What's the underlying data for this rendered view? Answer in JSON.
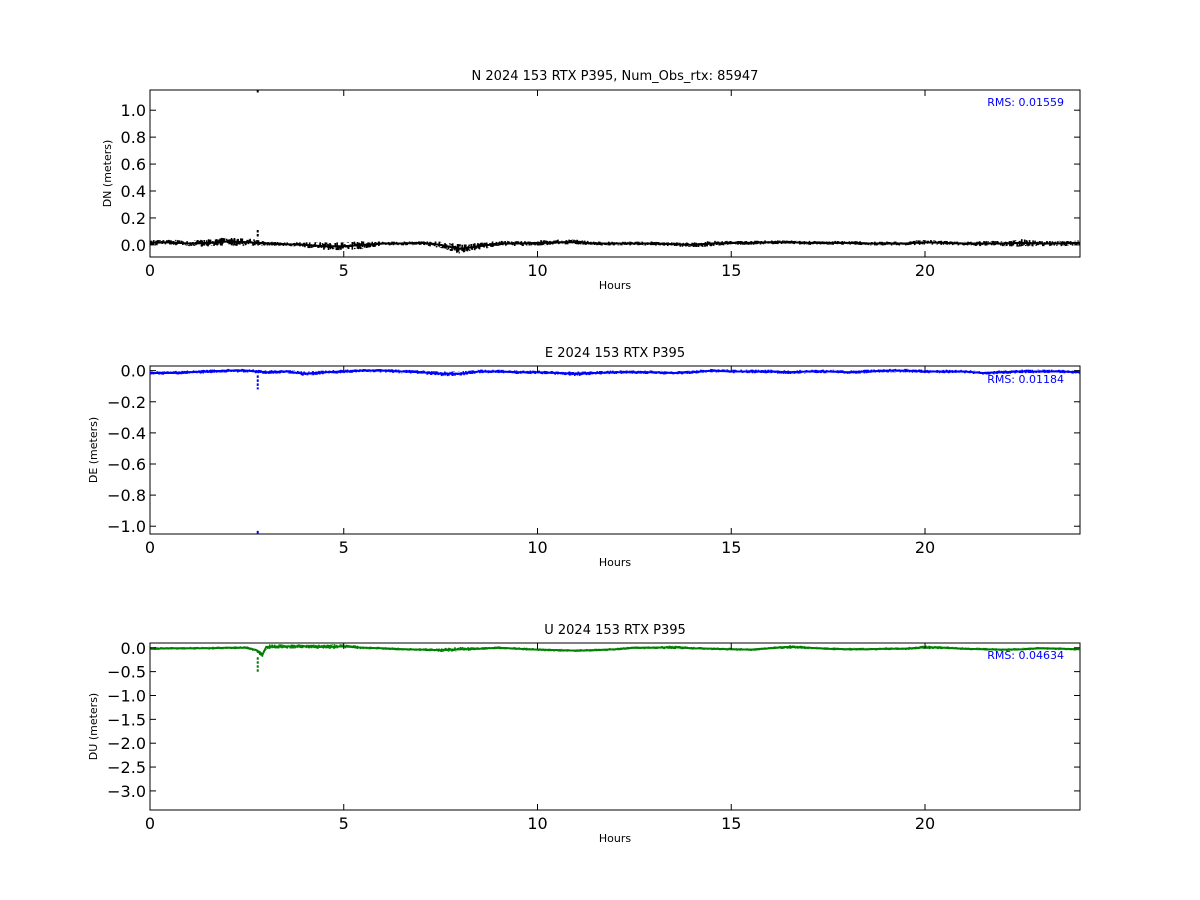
{
  "chart_data": [
    {
      "type": "line",
      "title": "N 2024 153 RTX  P395, Num_Obs_rtx: 85947",
      "xlabel": "Hours",
      "ylabel": "DN (meters)",
      "xlim": [
        0,
        24
      ],
      "ylim": [
        -0.09,
        1.15
      ],
      "xticks": [
        0,
        5,
        10,
        15,
        20
      ],
      "xtick_labels": [
        "0",
        "5",
        "10",
        "15",
        "20"
      ],
      "yticks": [
        0.0,
        0.2,
        0.4,
        0.6,
        0.8,
        1.0
      ],
      "ytick_labels": [
        "0.0",
        "0.2",
        "0.4",
        "0.6",
        "0.8",
        "1.0"
      ],
      "grid": false,
      "color": "#000000",
      "annotation": "RMS:  0.01559",
      "annotation_color": "#0000ff",
      "series": [
        {
          "x": [
            0,
            0.5,
            1,
            1.5,
            2,
            2.5,
            3,
            3.5,
            4,
            4.5,
            5,
            5.5,
            6,
            6.5,
            7,
            7.5,
            8,
            8.5,
            9,
            9.5,
            10,
            10.5,
            11,
            11.5,
            12,
            12.5,
            13,
            13.5,
            14,
            14.5,
            15,
            15.5,
            16,
            16.5,
            17,
            17.5,
            18,
            18.5,
            19,
            19.5,
            20,
            20.5,
            21,
            21.5,
            22,
            22.5,
            23,
            23.5,
            24
          ],
          "y": [
            0.015,
            0.02,
            0.01,
            0.015,
            0.025,
            0.02,
            0.01,
            0.005,
            0.0,
            -0.01,
            -0.01,
            0.0,
            0.01,
            0.01,
            0.015,
            0.0,
            -0.03,
            -0.01,
            0.01,
            0.01,
            0.015,
            0.02,
            0.02,
            0.01,
            0.01,
            0.01,
            0.01,
            0.005,
            0.0,
            0.01,
            0.015,
            0.015,
            0.02,
            0.02,
            0.015,
            0.015,
            0.015,
            0.01,
            0.01,
            0.01,
            0.02,
            0.015,
            0.01,
            0.01,
            0.01,
            0.015,
            0.01,
            0.01,
            0.015
          ],
          "noise": [
            0.02,
            0.02,
            0.02,
            0.03,
            0.03,
            0.03,
            0.015,
            0.015,
            0.02,
            0.03,
            0.03,
            0.03,
            0.015,
            0.015,
            0.015,
            0.025,
            0.035,
            0.025,
            0.02,
            0.02,
            0.02,
            0.02,
            0.02,
            0.015,
            0.015,
            0.015,
            0.015,
            0.015,
            0.02,
            0.02,
            0.015,
            0.015,
            0.015,
            0.015,
            0.015,
            0.015,
            0.015,
            0.015,
            0.015,
            0.015,
            0.02,
            0.015,
            0.015,
            0.02,
            0.02,
            0.03,
            0.02,
            0.02,
            0.02
          ]
        }
      ],
      "spikes": [
        {
          "x": 2.78,
          "y_from": 0.05,
          "y_to": 0.11
        },
        {
          "x": 2.78,
          "y_from": 1.13,
          "y_to": 1.15
        }
      ]
    },
    {
      "type": "line",
      "title": "E 2024 153 RTX  P395",
      "xlabel": "Hours",
      "ylabel": "DE (meters)",
      "xlim": [
        0,
        24
      ],
      "ylim": [
        -1.05,
        0.03
      ],
      "xticks": [
        0,
        5,
        10,
        15,
        20
      ],
      "xtick_labels": [
        "0",
        "5",
        "10",
        "15",
        "20"
      ],
      "yticks": [
        0.0,
        -0.2,
        -0.4,
        -0.6,
        -0.8,
        -1.0
      ],
      "ytick_labels": [
        "0.0",
        "−0.2",
        "−0.4",
        "−0.6",
        "−0.8",
        "−1.0"
      ],
      "grid": false,
      "color": "#0000ff",
      "annotation": "RMS:  0.01184",
      "annotation_color": "#0000ff",
      "series": [
        {
          "x": [
            0,
            0.5,
            1,
            1.5,
            2,
            2.5,
            3,
            3.5,
            4,
            4.5,
            5,
            5.5,
            6,
            6.5,
            7,
            7.5,
            8,
            8.5,
            9,
            9.5,
            10,
            10.5,
            11,
            11.5,
            12,
            12.5,
            13,
            13.5,
            14,
            14.5,
            15,
            15.5,
            16,
            16.5,
            17,
            17.5,
            18,
            18.5,
            19,
            19.5,
            20,
            20.5,
            21,
            21.5,
            22,
            22.5,
            23,
            23.5,
            24
          ],
          "y": [
            -0.015,
            -0.015,
            -0.01,
            -0.005,
            0.0,
            0.0,
            -0.01,
            -0.005,
            -0.02,
            -0.01,
            -0.005,
            0.0,
            0.0,
            -0.005,
            -0.01,
            -0.02,
            -0.02,
            -0.005,
            -0.005,
            -0.01,
            -0.01,
            -0.015,
            -0.02,
            -0.015,
            -0.01,
            -0.01,
            -0.01,
            -0.015,
            -0.01,
            0.0,
            -0.005,
            -0.005,
            -0.005,
            -0.01,
            -0.005,
            -0.005,
            -0.01,
            -0.005,
            0.0,
            0.0,
            -0.005,
            -0.005,
            -0.005,
            -0.015,
            -0.01,
            -0.005,
            -0.005,
            -0.005,
            -0.01
          ],
          "noise": [
            0.012,
            0.012,
            0.012,
            0.012,
            0.012,
            0.012,
            0.012,
            0.012,
            0.015,
            0.012,
            0.012,
            0.012,
            0.012,
            0.012,
            0.012,
            0.015,
            0.015,
            0.012,
            0.012,
            0.012,
            0.012,
            0.012,
            0.015,
            0.012,
            0.012,
            0.012,
            0.012,
            0.012,
            0.012,
            0.012,
            0.012,
            0.012,
            0.012,
            0.012,
            0.012,
            0.012,
            0.012,
            0.012,
            0.012,
            0.012,
            0.012,
            0.012,
            0.012,
            0.012,
            0.012,
            0.012,
            0.012,
            0.012,
            0.012
          ]
        }
      ],
      "spikes": [
        {
          "x": 2.78,
          "y_from": -0.03,
          "y_to": -0.12
        },
        {
          "x": 2.78,
          "y_from": -1.03,
          "y_to": -1.05
        }
      ]
    },
    {
      "type": "line",
      "title": "U 2024 153 RTX  P395",
      "xlabel": "Hours",
      "ylabel": "DU (meters)",
      "xlim": [
        0,
        24
      ],
      "ylim": [
        -3.4,
        0.1
      ],
      "xticks": [
        0,
        5,
        10,
        15,
        20
      ],
      "xtick_labels": [
        "0",
        "5",
        "10",
        "15",
        "20"
      ],
      "yticks": [
        0.0,
        -0.5,
        -1.0,
        -1.5,
        -2.0,
        -2.5,
        -3.0
      ],
      "ytick_labels": [
        "0.0",
        "−0.5",
        "−1.0",
        "−1.5",
        "−2.0",
        "−2.5",
        "−3.0"
      ],
      "grid": false,
      "color": "#008000",
      "annotation": "RMS:  0.04634",
      "annotation_color": "#0000ff",
      "series": [
        {
          "x": [
            0,
            0.5,
            1,
            1.5,
            2,
            2.5,
            2.75,
            2.9,
            3,
            3.5,
            4,
            4.5,
            5,
            5.5,
            6,
            6.5,
            7,
            7.5,
            8,
            8.5,
            9,
            9.5,
            10,
            10.5,
            11,
            11.5,
            12,
            12.5,
            13,
            13.5,
            14,
            14.5,
            15,
            15.5,
            16,
            16.5,
            17,
            17.5,
            18,
            18.5,
            19,
            19.5,
            20,
            20.5,
            21,
            21.5,
            22,
            22.5,
            23,
            23.5,
            24
          ],
          "y": [
            -0.02,
            -0.01,
            -0.01,
            -0.01,
            0.0,
            0.0,
            -0.05,
            -0.15,
            0.02,
            0.03,
            0.03,
            0.02,
            0.03,
            0.0,
            -0.01,
            -0.03,
            -0.04,
            -0.05,
            -0.03,
            -0.02,
            0.0,
            -0.02,
            -0.04,
            -0.05,
            -0.06,
            -0.05,
            -0.03,
            0.0,
            0.0,
            0.01,
            -0.01,
            -0.02,
            -0.03,
            -0.04,
            -0.01,
            0.02,
            0.0,
            -0.02,
            -0.03,
            -0.03,
            -0.02,
            -0.02,
            0.01,
            0.0,
            -0.02,
            -0.03,
            -0.04,
            -0.03,
            -0.01,
            -0.02,
            -0.03
          ],
          "noise": [
            0.03,
            0.03,
            0.03,
            0.03,
            0.03,
            0.03,
            0.04,
            0.06,
            0.05,
            0.05,
            0.04,
            0.05,
            0.05,
            0.03,
            0.03,
            0.03,
            0.03,
            0.04,
            0.05,
            0.03,
            0.03,
            0.03,
            0.03,
            0.03,
            0.03,
            0.03,
            0.03,
            0.03,
            0.03,
            0.04,
            0.03,
            0.03,
            0.03,
            0.03,
            0.03,
            0.04,
            0.03,
            0.03,
            0.03,
            0.03,
            0.03,
            0.03,
            0.04,
            0.03,
            0.03,
            0.03,
            0.03,
            0.03,
            0.03,
            0.03,
            0.03
          ]
        }
      ],
      "spikes": [
        {
          "x": 2.78,
          "y_from": -0.2,
          "y_to": -0.52
        }
      ]
    }
  ]
}
